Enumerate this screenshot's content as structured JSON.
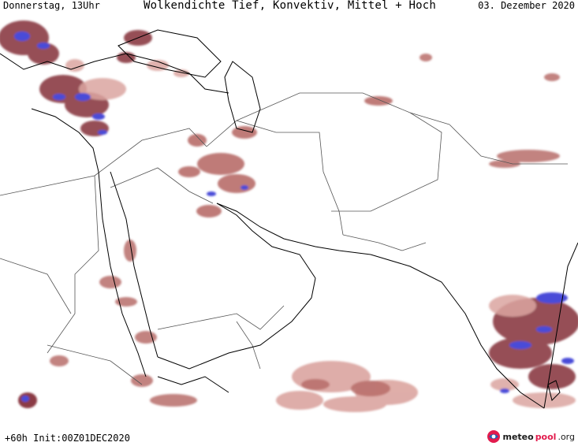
{
  "header": {
    "day_time": "Donnerstag, 13Uhr",
    "title": "Wolkendichte  Tief, Konvektiv, Mittel + Hoch",
    "date": "03. Dezember 2020"
  },
  "footer": {
    "run_info": "+60h Init:00Z01DEC2020",
    "logo_part1": "meteo",
    "logo_part2": "pool",
    "logo_part3": ".org"
  },
  "legend_colors": {
    "cloud_light": "#dba5a0",
    "cloud_medium": "#b86d6a",
    "cloud_dark": "#8b3a44",
    "convective": "#4a4bd8",
    "coastline": "#000000",
    "border": "#555555"
  },
  "icons": {
    "logo_icon": "meteopool-globe-icon"
  }
}
